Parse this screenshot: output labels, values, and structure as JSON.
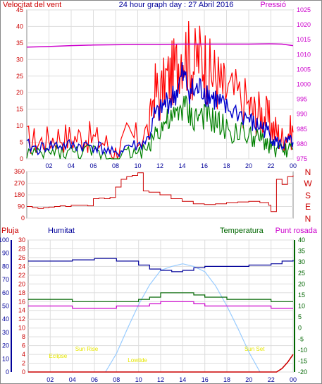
{
  "title": "24 hour graph day : 27 Abril 2016",
  "colors": {
    "wind": "#ff0000",
    "gust": "#ff0000",
    "avg": "#0000cc",
    "low": "#008000",
    "pressure": "#cc00cc",
    "humidity": "#000099",
    "temperature": "#006600",
    "dewpoint": "#cc00cc",
    "rain": "#cc0000",
    "solar": "#99ccff",
    "annot": "#e6e600"
  },
  "chart_data": [
    {
      "type": "line",
      "name": "wind-pressure",
      "left_label": "Velocitat del vent",
      "right_label": "Pressió",
      "xlim": [
        0,
        24
      ],
      "x_ticks": [
        "02",
        "04",
        "06",
        "08",
        "10",
        "12",
        "14",
        "16",
        "18",
        "20",
        "22",
        "00"
      ],
      "ylim_left": [
        0,
        45
      ],
      "y_ticks_left": [
        "0",
        "5",
        "10",
        "15",
        "20",
        "25",
        "30",
        "35",
        "40",
        "45"
      ],
      "ylim_right": [
        975,
        1025
      ],
      "y_ticks_right": [
        "975",
        "980",
        "985",
        "990",
        "995",
        "1000",
        "1005",
        "1010",
        "1015",
        "1020",
        "1025"
      ],
      "series": [
        {
          "role": "gust",
          "x": [
            0,
            1,
            2,
            3,
            4,
            5,
            6,
            7,
            8,
            9,
            10,
            11,
            11.5,
            12,
            12.5,
            13,
            13.5,
            14,
            14.5,
            15,
            15.5,
            16,
            16.5,
            17,
            17.5,
            18,
            19,
            20,
            20.5,
            21,
            21.5,
            22,
            22.5,
            23,
            23.5,
            24
          ],
          "values": [
            6,
            5,
            6,
            7,
            6,
            7,
            6,
            5,
            2,
            7,
            6,
            9,
            21,
            19,
            24,
            25,
            28,
            34,
            31,
            28,
            31,
            30,
            26,
            25,
            22,
            20,
            19,
            16,
            14,
            14,
            13,
            10,
            8,
            6,
            8,
            8
          ]
        },
        {
          "role": "avg",
          "x": [
            0,
            1,
            2,
            3,
            4,
            5,
            6,
            7,
            8,
            9,
            10,
            11,
            11.5,
            12,
            12.5,
            13,
            13.5,
            14,
            14.5,
            15,
            15.5,
            16,
            16.5,
            17,
            17.5,
            18,
            19,
            20,
            20.5,
            21,
            21.5,
            22,
            22.5,
            23,
            23.5,
            24
          ],
          "values": [
            4,
            3,
            4,
            4,
            4,
            4,
            4,
            3,
            1,
            4,
            4,
            6,
            13,
            14,
            17,
            18,
            20,
            25,
            22,
            20,
            21,
            21,
            19,
            18,
            16,
            15,
            14,
            12,
            10,
            10,
            9,
            7,
            5,
            4,
            5,
            5
          ]
        },
        {
          "role": "low",
          "x": [
            0,
            1,
            2,
            3,
            4,
            5,
            6,
            7,
            8,
            9,
            10,
            11,
            11.5,
            12,
            12.5,
            13,
            13.5,
            14,
            14.5,
            15,
            15.5,
            16,
            16.5,
            17,
            17.5,
            18,
            19,
            20,
            20.5,
            21,
            21.5,
            22,
            22.5,
            23,
            23.5,
            24
          ],
          "values": [
            2,
            1,
            2,
            2,
            2,
            2,
            2,
            1,
            0,
            2,
            2,
            3,
            8,
            9,
            11,
            11,
            13,
            16,
            14,
            12,
            13,
            13,
            12,
            11,
            10,
            9,
            8,
            7,
            6,
            6,
            5,
            4,
            3,
            2,
            3,
            3
          ]
        },
        {
          "role": "pressure",
          "x": [
            0,
            2,
            4,
            6,
            8,
            10,
            12,
            14,
            16,
            18,
            20,
            22,
            23,
            24
          ],
          "values": [
            1012.5,
            1012.7,
            1013.0,
            1013.2,
            1013.3,
            1013.4,
            1013.4,
            1013.5,
            1013.5,
            1013.5,
            1013.5,
            1013.6,
            1013.5,
            1013.0
          ]
        }
      ]
    },
    {
      "type": "line",
      "name": "wind-direction",
      "xlim": [
        0,
        24
      ],
      "ylim": [
        0,
        360
      ],
      "y_ticks": [
        "0",
        "90",
        "180",
        "270",
        "360"
      ],
      "compass_labels": [
        "N",
        "W",
        "S",
        "E",
        "N"
      ],
      "series": [
        {
          "role": "direction",
          "x": [
            0,
            0.5,
            1,
            1.5,
            2,
            2.5,
            3,
            3.5,
            4,
            4.5,
            5,
            5.5,
            6,
            6.5,
            7,
            7.5,
            8,
            8.5,
            9,
            9.5,
            10,
            10.5,
            11,
            12,
            13,
            14,
            15,
            16,
            17,
            18,
            19,
            20,
            21,
            21.8,
            22,
            22.5,
            23,
            23.5,
            24
          ],
          "values": [
            90,
            80,
            75,
            80,
            85,
            90,
            95,
            90,
            100,
            100,
            100,
            95,
            150,
            155,
            150,
            160,
            240,
            300,
            320,
            330,
            350,
            210,
            200,
            180,
            150,
            130,
            110,
            105,
            110,
            120,
            125,
            130,
            120,
            100,
            50,
            300,
            260,
            320,
            330
          ]
        }
      ]
    },
    {
      "type": "line",
      "name": "rain-humidity-temperature",
      "labels": {
        "rain": "Pluja",
        "humidity": "Humitat",
        "temperature": "Temperatura",
        "dewpoint": "Punt rosada"
      },
      "xlim": [
        0,
        24
      ],
      "x_ticks": [
        "02",
        "04",
        "06",
        "08",
        "10",
        "12",
        "14",
        "16",
        "18",
        "20",
        "22",
        "00"
      ],
      "y_ticks_humidity": [
        "0",
        "10",
        "20",
        "30",
        "40",
        "50",
        "60",
        "70",
        "80",
        "90",
        "100"
      ],
      "y_ticks_rain": [
        "0",
        "2",
        "4",
        "6",
        "8",
        "10",
        "12",
        "14",
        "16",
        "18",
        "20",
        "22",
        "24",
        "26",
        "28",
        "30"
      ],
      "ylim_temperature": [
        -20,
        40
      ],
      "y_ticks_temperature": [
        "-20",
        "-15",
        "-10",
        "-5",
        "0",
        "5",
        "10",
        "15",
        "20",
        "25",
        "30",
        "35",
        "40"
      ],
      "annotations": [
        {
          "text": "Eclipse",
          "x": 2.7
        },
        {
          "text": "Sun Rise",
          "x": 5.3
        },
        {
          "text": "Lowtide",
          "x": 9.9
        },
        {
          "text": "Sun Set",
          "x": 20.5
        }
      ],
      "series": [
        {
          "role": "humidity",
          "x": [
            0,
            2,
            4,
            6,
            8,
            10,
            11,
            12,
            13,
            14,
            15,
            16,
            18,
            20,
            22,
            23,
            24
          ],
          "values": [
            84,
            84,
            85,
            86,
            84,
            81,
            78,
            77,
            76,
            77,
            79,
            80,
            80,
            81,
            82,
            84,
            85
          ]
        },
        {
          "role": "temperature",
          "x": [
            0,
            2,
            4,
            6,
            8,
            10,
            11,
            12,
            13,
            14,
            15,
            16,
            18,
            20,
            22,
            24
          ],
          "values": [
            13,
            13,
            12,
            12,
            12,
            13,
            14,
            16,
            16,
            16,
            15,
            14,
            13,
            13,
            12,
            12
          ]
        },
        {
          "role": "dewpoint",
          "x": [
            0,
            2,
            4,
            6,
            8,
            10,
            11,
            12,
            13,
            14,
            15,
            16,
            18,
            20,
            22,
            24
          ],
          "values": [
            10,
            10,
            9,
            9,
            10,
            10,
            11,
            12,
            12,
            12,
            11,
            10,
            10,
            10,
            9,
            9
          ]
        },
        {
          "role": "solar",
          "x": [
            7,
            8,
            9,
            10,
            11,
            12,
            13,
            14,
            15,
            16,
            17,
            18,
            19,
            20,
            21
          ],
          "values": [
            0,
            14,
            33,
            51,
            66,
            77,
            80,
            82,
            80,
            76,
            65,
            50,
            33,
            15,
            0
          ]
        },
        {
          "role": "rain",
          "x": [
            0,
            22.5,
            23,
            23.5,
            24
          ],
          "values": [
            0,
            0,
            0.8,
            2.2,
            4
          ]
        }
      ]
    }
  ]
}
